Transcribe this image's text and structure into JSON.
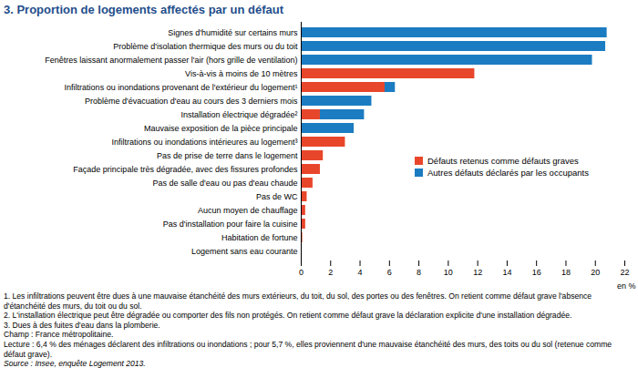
{
  "chart_data": {
    "type": "bar",
    "title": "3. Proportion de logements affectés par un défaut",
    "orientation": "horizontal",
    "stacked": true,
    "grid": false,
    "legend": "right",
    "xlabel": "en %",
    "categories": [
      "Signes d'humidité sur certains murs",
      "Problème d'isolation thermique des murs ou du toit",
      "Fenêtres laissant anormalement passer l'air (hors grille de ventilation)",
      "Vis-à-vis à moins de 10 mètres",
      "Infiltrations ou inondations provenant de l'extérieur du logement¹",
      "Problème d'évacuation d'eau au cours des 3 derniers mois",
      "Installation électrique dégradée²",
      "Mauvaise exposition de la pièce principale",
      "Infiltrations ou inondations intérieures au logement³",
      "Pas de prise de terre dans le logement",
      "Façade principale très dégradée, avec des fissures profondes",
      "Pas de salle d'eau ou pas d'eau chaude",
      "Pas de WC",
      "Aucun moyen de chauffage",
      "Pas d'installation pour faire la cuisine",
      "Habitation de fortune",
      "Logement sans eau courante"
    ],
    "series": [
      {
        "name": "Défauts retenus comme défauts graves",
        "color": "#e8462b",
        "values": [
          0,
          0,
          0,
          11.8,
          5.7,
          0,
          1.3,
          0,
          3.0,
          1.5,
          1.3,
          0.8,
          0.4,
          0.3,
          0.3,
          0.1,
          0.05
        ]
      },
      {
        "name": "Autres défauts déclarés par les occupants",
        "color": "#1b7cc2",
        "values": [
          20.8,
          20.7,
          19.8,
          0,
          0.7,
          4.8,
          3.0,
          3.6,
          0,
          0,
          0,
          0,
          0,
          0,
          0,
          0,
          0
        ]
      }
    ],
    "xlim": [
      0,
      22
    ],
    "xticks": [
      0,
      2,
      4,
      6,
      8,
      10,
      12,
      14,
      16,
      18,
      20,
      22
    ],
    "notes": [
      "1. Les infiltrations peuvent être dues à une mauvaise étanchéité des murs extérieurs, du toit, du sol, des portes ou des fenêtres. On retient comme défaut grave l'absence d'étanchéité des murs, du toit ou du sol.",
      "2. L'installation électrique peut être dégradée ou comporter des fils non protégés. On retient comme défaut grave la déclaration explicite d'une installation dégradée.",
      "3. Dues à des fuites d'eau dans la plomberie.",
      "Champ : France métropolitaine.",
      "Lecture : 6,4 % des ménages déclarent des infiltrations ou inondations ; pour 5,7 %, elles proviennent d'une mauvaise étanchéité des murs, des toits ou du sol (retenue comme défaut grave).",
      "Source : Insee, enquête Logement 2013."
    ]
  }
}
